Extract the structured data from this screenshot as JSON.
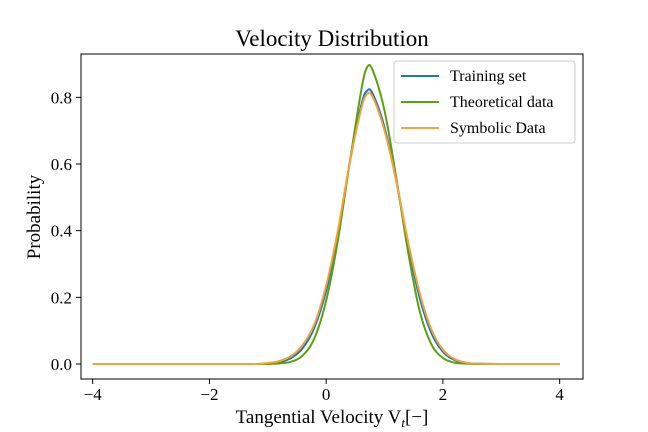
{
  "chart_data": {
    "type": "line",
    "title": "Velocity Distribution",
    "xlabel": "Tangential Velocity V",
    "xlabel_sub": "t",
    "xlabel_suffix": "[−]",
    "ylabel": "Probability",
    "xlim": [
      -4.2,
      4.4
    ],
    "ylim": [
      -0.045,
      0.93
    ],
    "xticks": [
      -4,
      -2,
      0,
      2,
      4
    ],
    "xtick_labels": [
      "−4",
      "−2",
      "0",
      "2",
      "4"
    ],
    "yticks": [
      0.0,
      0.2,
      0.4,
      0.6,
      0.8
    ],
    "ytick_labels": [
      "0.0",
      "0.2",
      "0.4",
      "0.6",
      "0.8"
    ],
    "grid": false,
    "legend_position": "top-right",
    "x": [
      -4.0,
      -2.0,
      -1.5,
      -1.2,
      -1.0,
      -0.8,
      -0.6,
      -0.4,
      -0.2,
      0.0,
      0.2,
      0.4,
      0.6,
      0.7,
      0.8,
      1.0,
      1.2,
      1.4,
      1.6,
      1.8,
      2.0,
      2.2,
      2.4,
      2.6,
      3.0,
      4.0
    ],
    "series": [
      {
        "name": "Training set",
        "color": "#1f77b4",
        "values": [
          0.0,
          0.0,
          0.0,
          0.0,
          0.002,
          0.006,
          0.018,
          0.048,
          0.11,
          0.22,
          0.39,
          0.6,
          0.775,
          0.82,
          0.81,
          0.71,
          0.55,
          0.36,
          0.2,
          0.094,
          0.037,
          0.012,
          0.003,
          0.001,
          0.0,
          0.0
        ]
      },
      {
        "name": "Theoretical data",
        "color": "#5aa012",
        "values": [
          0.0,
          0.0,
          0.0,
          0.0,
          0.0,
          0.002,
          0.007,
          0.026,
          0.078,
          0.19,
          0.37,
          0.6,
          0.82,
          0.89,
          0.88,
          0.76,
          0.56,
          0.34,
          0.16,
          0.06,
          0.018,
          0.004,
          0.001,
          0.0,
          0.0,
          0.0
        ]
      },
      {
        "name": "Symbolic Data",
        "color": "#f4a23d",
        "values": [
          0.0,
          0.0,
          0.0,
          0.0,
          0.003,
          0.009,
          0.024,
          0.058,
          0.12,
          0.235,
          0.4,
          0.6,
          0.765,
          0.81,
          0.8,
          0.7,
          0.55,
          0.37,
          0.215,
          0.105,
          0.043,
          0.015,
          0.004,
          0.001,
          0.0,
          0.0
        ]
      }
    ]
  }
}
